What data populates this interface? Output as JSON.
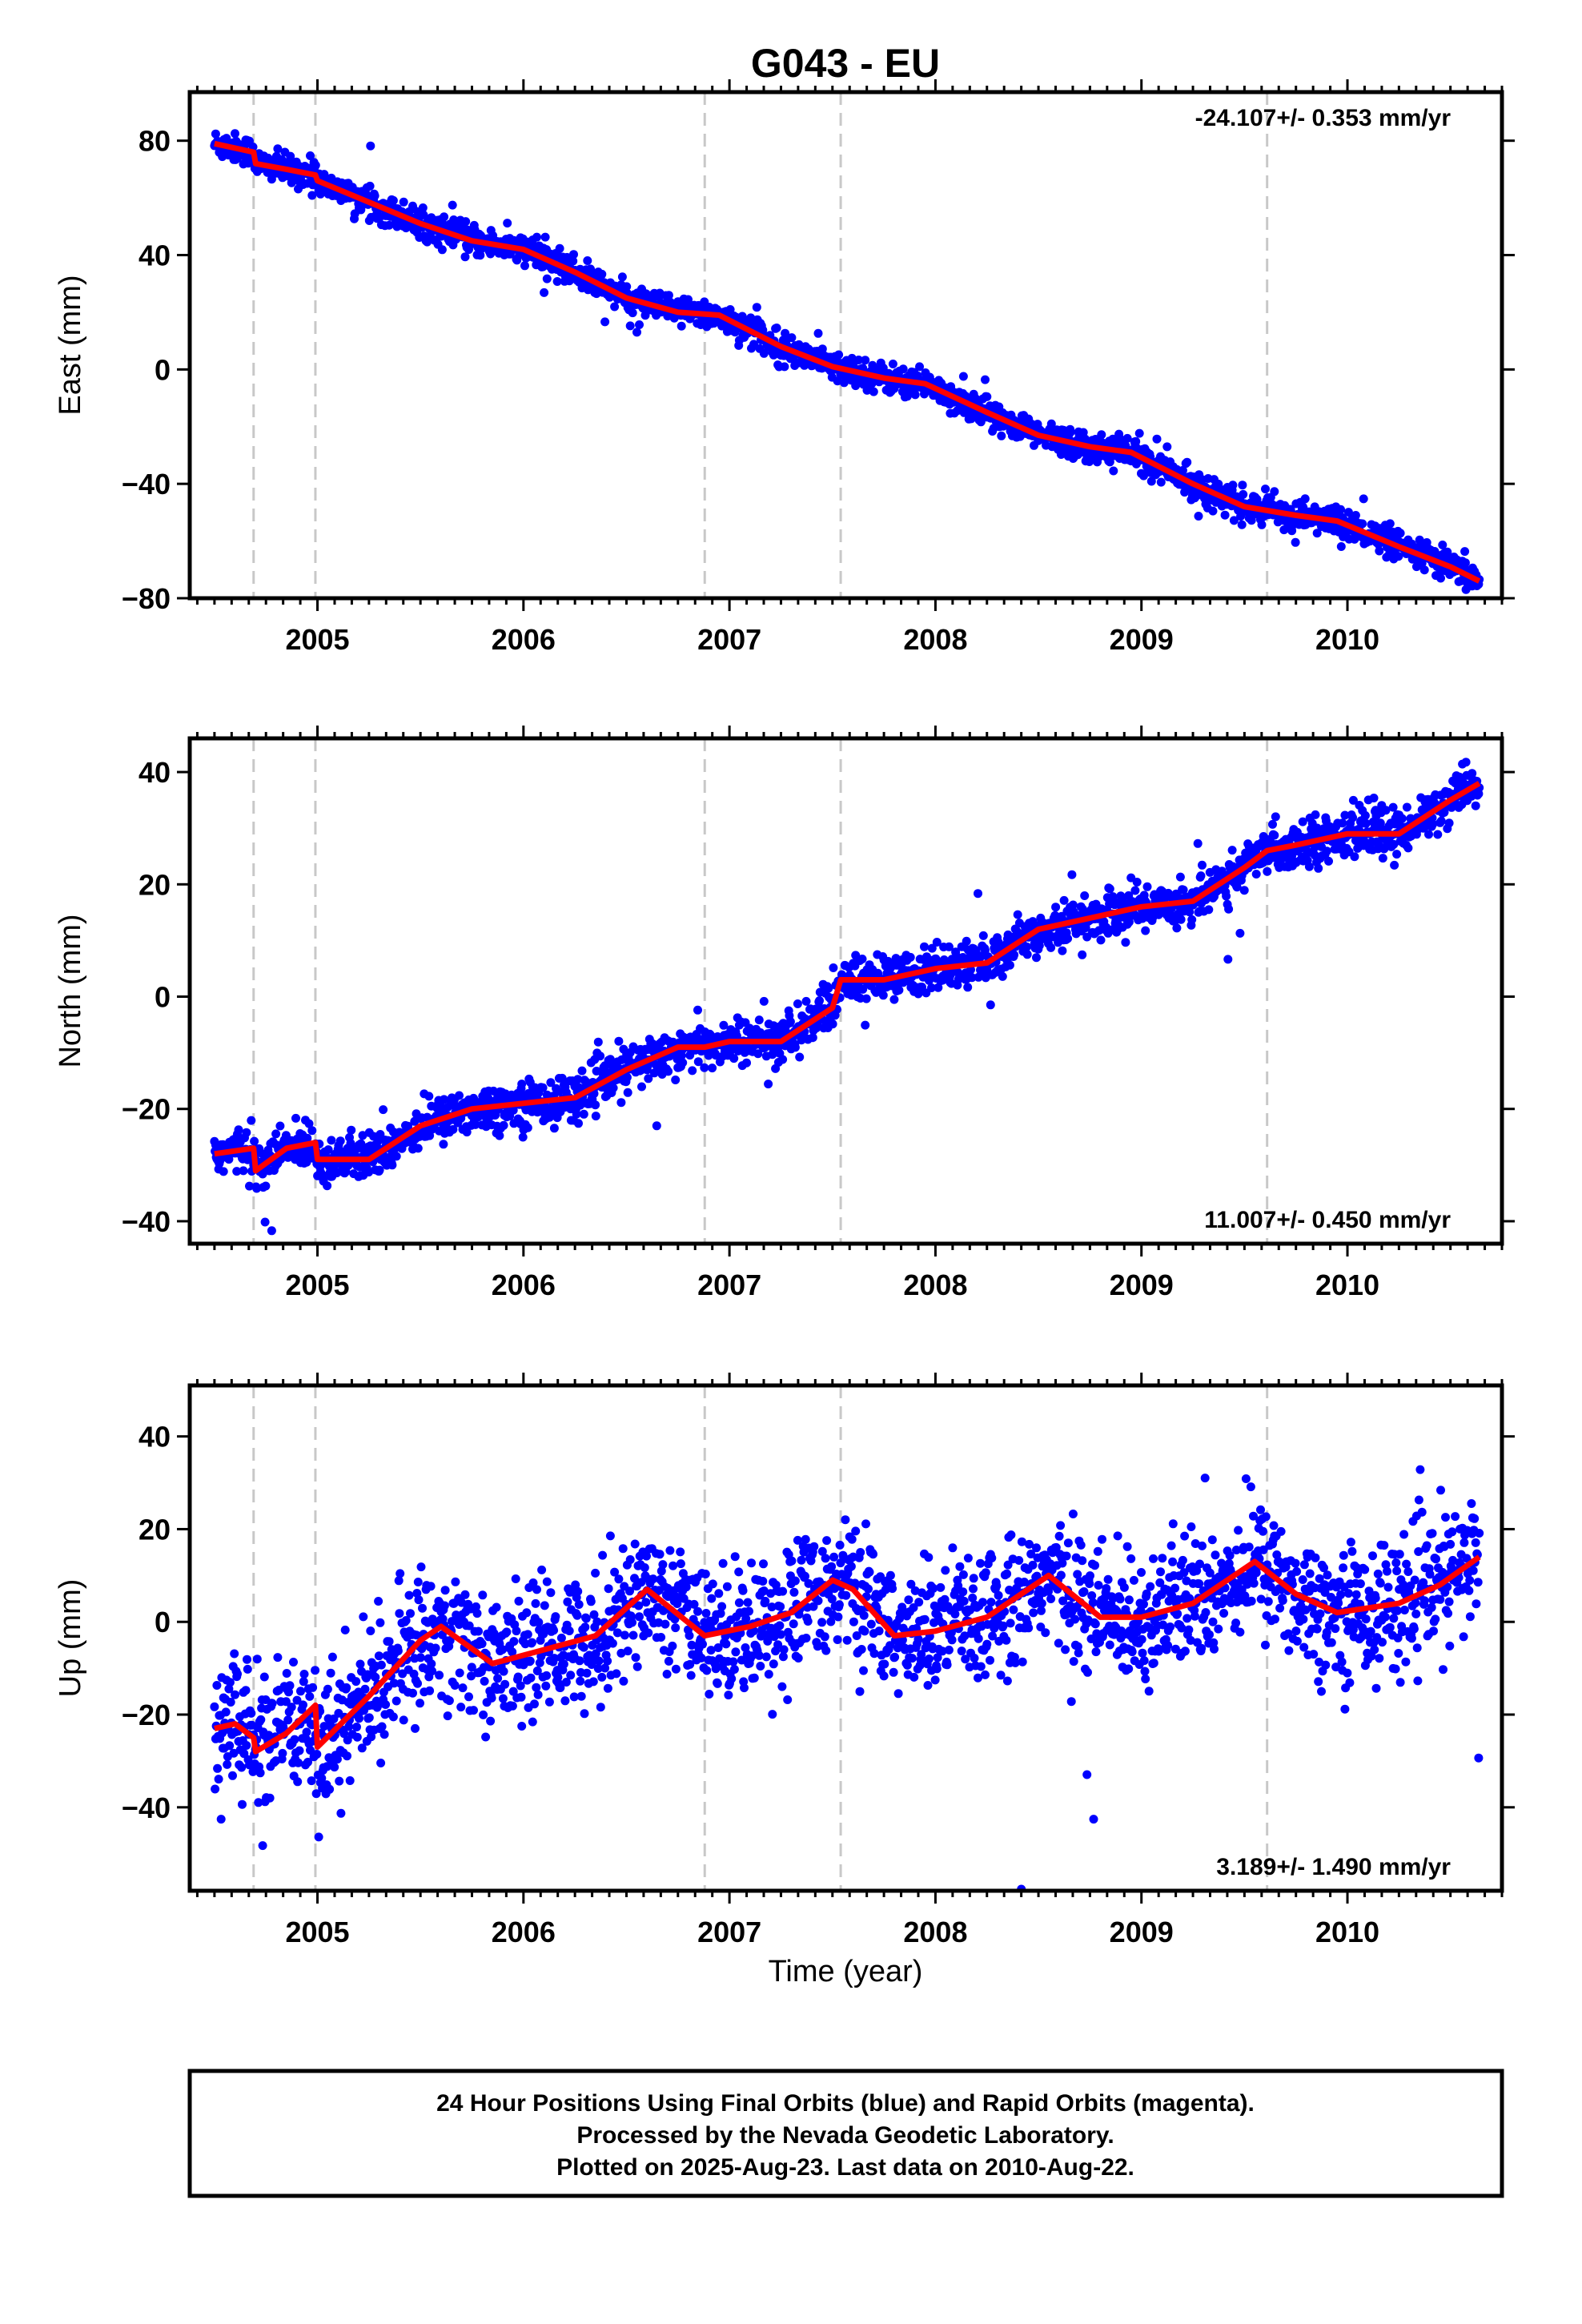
{
  "title": "G043 - EU",
  "xlabel": "Time (year)",
  "footer": {
    "line1": "24 Hour Positions Using Final Orbits (blue) and Rapid Orbits (magenta).",
    "line2": "Processed by the Nevada Geodetic Laboratory.",
    "line3": "Plotted on 2025-Aug-23. Last data on 2010-Aug-22."
  },
  "colors": {
    "points": "#0000ff",
    "model": "#ff0000",
    "events": "#c8c8c8",
    "frame": "#000000"
  },
  "chart_data": [
    {
      "type": "scatter",
      "component": "East",
      "ylabel": "East (mm)",
      "rate_text": "-24.107+/- 0.353 mm/yr",
      "rate_position": "top-right",
      "xlim": [
        2004.38,
        2010.75
      ],
      "ylim": [
        -80,
        97
      ],
      "xticks": [
        2005,
        2006,
        2007,
        2008,
        2009,
        2010
      ],
      "yticks": [
        -80,
        -40,
        0,
        40,
        80
      ],
      "event_lines": [
        2004.69,
        2004.99,
        2006.88,
        2007.54,
        2009.61
      ],
      "noise_mm": 2.5,
      "trend_model": {
        "x": [
          2004.5,
          2004.69,
          2004.7,
          2004.85,
          2004.99,
          2005.0,
          2005.5,
          2005.75,
          2006.0,
          2006.25,
          2006.5,
          2006.75,
          2006.95,
          2007.25,
          2007.5,
          2007.75,
          2007.95,
          2008.25,
          2008.5,
          2008.75,
          2008.95,
          2009.25,
          2009.5,
          2009.75,
          2009.95,
          2010.25,
          2010.5,
          2010.64
        ],
        "y": [
          79,
          76,
          72,
          70,
          68,
          66,
          51,
          45,
          42,
          34,
          25,
          20,
          19,
          8,
          1,
          -3,
          -5,
          -15,
          -23,
          -27,
          -29,
          -40,
          -48,
          -51,
          -53,
          -62,
          -69,
          -74
        ]
      }
    },
    {
      "type": "scatter",
      "component": "North",
      "ylabel": "North (mm)",
      "rate_text": "11.007+/- 0.450 mm/yr",
      "rate_position": "bottom-right",
      "xlim": [
        2004.38,
        2010.75
      ],
      "ylim": [
        -44,
        46
      ],
      "xticks": [
        2005,
        2006,
        2007,
        2008,
        2009,
        2010
      ],
      "yticks": [
        -40,
        -20,
        0,
        20,
        40
      ],
      "event_lines": [
        2004.69,
        2004.99,
        2006.88,
        2007.54,
        2009.61
      ],
      "noise_mm": 2.0,
      "trend_model": {
        "x": [
          2004.5,
          2004.69,
          2004.7,
          2004.85,
          2004.99,
          2005.0,
          2005.25,
          2005.5,
          2005.75,
          2006.0,
          2006.25,
          2006.5,
          2006.75,
          2006.88,
          2007.0,
          2007.25,
          2007.5,
          2007.54,
          2007.75,
          2008.0,
          2008.25,
          2008.5,
          2008.75,
          2009.0,
          2009.25,
          2009.5,
          2009.61,
          2009.75,
          2010.0,
          2010.25,
          2010.5,
          2010.64
        ],
        "y": [
          -28,
          -27,
          -31,
          -27,
          -26,
          -29,
          -29,
          -23,
          -20,
          -19,
          -18,
          -13,
          -9,
          -9,
          -8,
          -8,
          -2,
          3,
          3,
          5,
          6,
          12,
          14,
          16,
          17,
          23,
          26,
          27,
          29,
          29,
          35,
          38
        ]
      }
    },
    {
      "type": "scatter",
      "component": "Up",
      "ylabel": "Up (mm)",
      "rate_text": "3.189+/- 1.490 mm/yr",
      "rate_position": "bottom-right",
      "xlim": [
        2004.38,
        2010.75
      ],
      "ylim": [
        -58,
        51
      ],
      "xticks": [
        2005,
        2006,
        2007,
        2008,
        2009,
        2010
      ],
      "yticks": [
        -40,
        -20,
        0,
        20,
        40
      ],
      "event_lines": [
        2004.69,
        2004.99,
        2006.88,
        2007.54,
        2009.61
      ],
      "noise_mm": 7.0,
      "trend_model": {
        "x": [
          2004.5,
          2004.6,
          2004.69,
          2004.7,
          2004.85,
          2004.99,
          2005.0,
          2005.25,
          2005.5,
          2005.6,
          2005.85,
          2006.1,
          2006.35,
          2006.6,
          2006.88,
          2007.1,
          2007.3,
          2007.5,
          2007.6,
          2007.8,
          2008.0,
          2008.25,
          2008.55,
          2008.8,
          2009.0,
          2009.25,
          2009.55,
          2009.75,
          2009.95,
          2010.25,
          2010.45,
          2010.64
        ],
        "y": [
          -23,
          -22,
          -25,
          -28,
          -24,
          -18,
          -27,
          -16,
          -4,
          -1,
          -9,
          -6,
          -3,
          7,
          -3,
          -1,
          2,
          9,
          7,
          -3,
          -2,
          1,
          10,
          1,
          1,
          4,
          13,
          6,
          2,
          4,
          8,
          14
        ]
      }
    }
  ]
}
